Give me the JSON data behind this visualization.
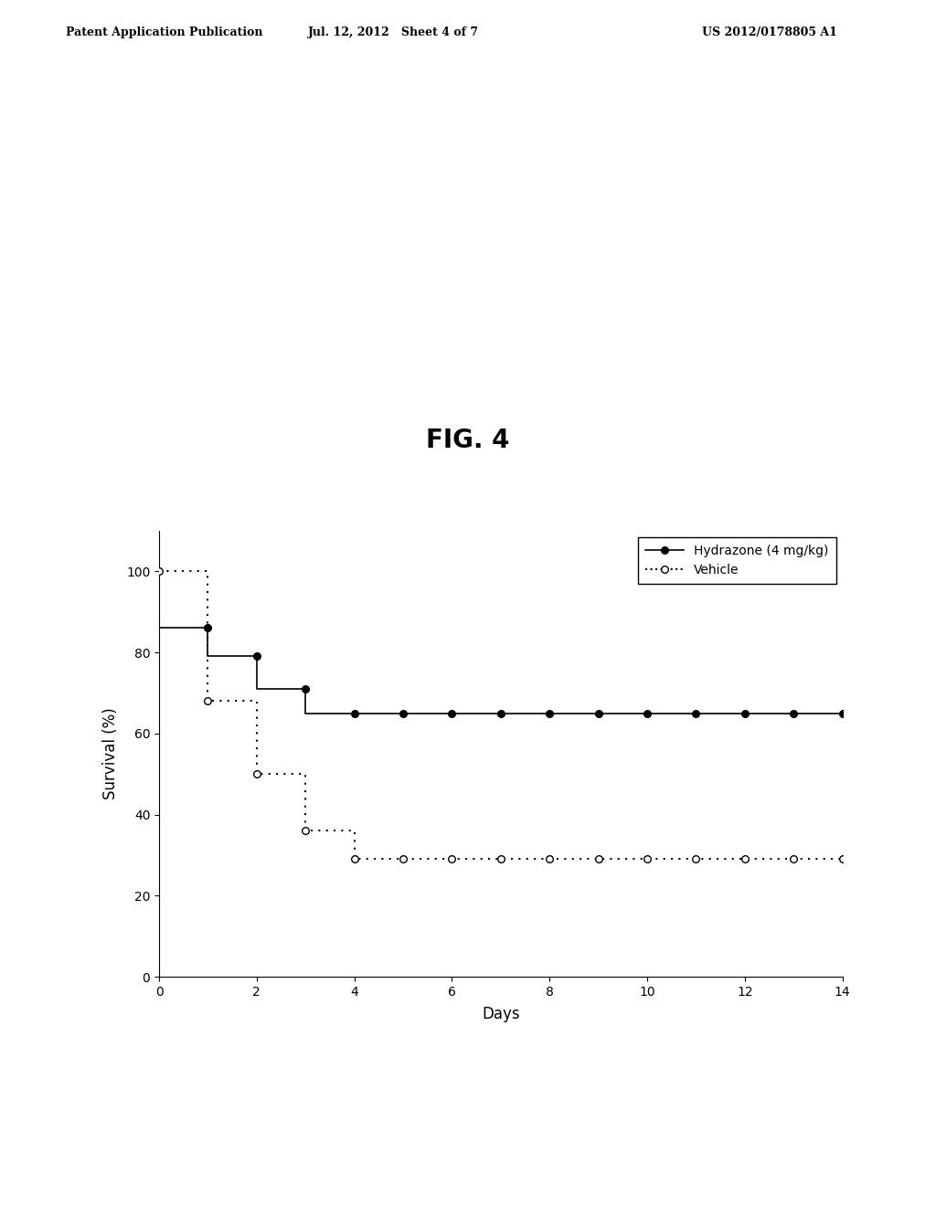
{
  "title": "FIG. 4",
  "xlabel": "Days",
  "ylabel": "Survival (%)",
  "header_left": "Patent Application Publication",
  "header_center": "Jul. 12, 2012   Sheet 4 of 7",
  "header_right": "US 2012/0178805 A1",
  "xlim": [
    0,
    14
  ],
  "ylim": [
    0,
    110
  ],
  "xticks": [
    0,
    2,
    4,
    6,
    8,
    10,
    12,
    14
  ],
  "yticks": [
    0,
    20,
    40,
    60,
    80,
    100
  ],
  "hyd_steps_x": [
    0,
    1,
    1,
    2,
    2,
    3,
    3,
    4,
    4,
    14
  ],
  "hyd_steps_y": [
    86,
    86,
    79,
    79,
    71,
    71,
    65,
    65,
    65,
    65
  ],
  "veh_steps_x": [
    0,
    0,
    1,
    1,
    2,
    2,
    3,
    3,
    4,
    4,
    14
  ],
  "veh_steps_y": [
    100,
    100,
    100,
    68,
    68,
    50,
    50,
    36,
    36,
    29,
    29
  ],
  "hyd_marker_x": [
    1,
    2,
    3,
    4,
    5,
    6,
    7,
    8,
    9,
    10,
    11,
    12,
    13,
    14
  ],
  "hyd_marker_y": [
    86,
    79,
    71,
    65,
    65,
    65,
    65,
    65,
    65,
    65,
    65,
    65,
    65,
    65
  ],
  "veh_marker_x": [
    0,
    1,
    2,
    3,
    4,
    5,
    6,
    7,
    8,
    9,
    10,
    11,
    12,
    13,
    14
  ],
  "veh_marker_y": [
    100,
    68,
    50,
    36,
    29,
    29,
    29,
    29,
    29,
    29,
    29,
    29,
    29,
    29,
    29
  ],
  "legend_label_1": "Hydrazone (4 mg/kg)",
  "legend_label_2": "Vehicle",
  "background_color": "#ffffff",
  "fontsize_title": 20,
  "fontsize_axis_label": 12,
  "fontsize_tick": 10,
  "fontsize_legend": 10,
  "fontsize_header": 9
}
